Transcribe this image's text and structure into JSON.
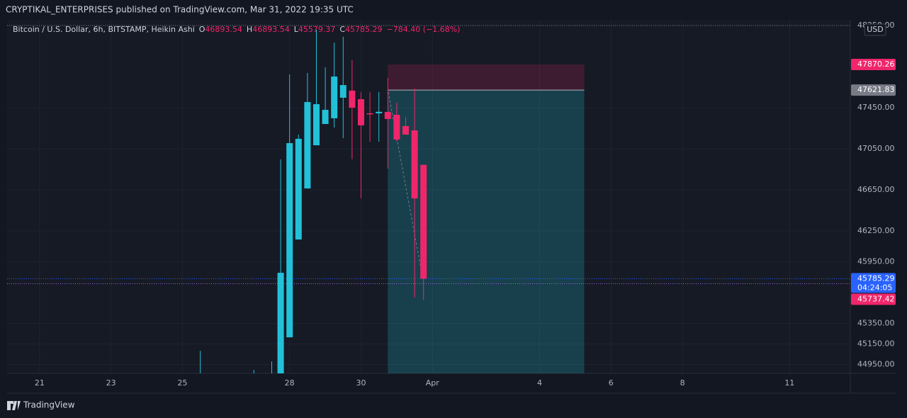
{
  "header": {
    "publisher": "CRYPTIKAL_ENTERPRISES published on TradingView.com, Mar 31, 2022 19:35 UTC",
    "logo": "TradingView"
  },
  "chart_data": {
    "type": "candlestick",
    "symbol": "Bitcoin / U.S. Dollar, 6h, BITSTAMP, Heikin Ashi",
    "ohlc_header": [
      {
        "key": "O",
        "text": "46893.54"
      },
      {
        "key": "H",
        "text": "46893.54"
      },
      {
        "key": "L",
        "text": "45579.37"
      },
      {
        "key": "C",
        "text": "45785.29"
      }
    ],
    "change": "−784.40 (−1.68%)",
    "currency": "USD",
    "up_color": "#22c1d8",
    "down_color": "#f0266b",
    "x": [
      25.5,
      27.0,
      27.5,
      27.75,
      28.0,
      28.25,
      28.5,
      28.75,
      29.0,
      29.25,
      29.5,
      29.75,
      30.0,
      30.25,
      30.5,
      30.75,
      31.0,
      31.25,
      31.5,
      31.75
    ],
    "open": [
      44800,
      44800,
      44800,
      44700,
      45215,
      46167,
      46664,
      47084,
      47291,
      47347,
      47547,
      47616,
      47533,
      47395,
      47395,
      47409,
      47381,
      47271,
      47229,
      46893.54
    ],
    "high": [
      45084,
      44898,
      44981,
      46947,
      47774,
      47188,
      47788,
      48209,
      47843,
      48084,
      48140,
      47912,
      47602,
      47602,
      47602,
      47740,
      47498,
      47360,
      47636,
      46893.54
    ],
    "low": [
      44700,
      44700,
      44700,
      44600,
      45215,
      46167,
      46664,
      47084,
      47291,
      47257,
      47153,
      46947,
      46567,
      47119,
      47119,
      46857,
      47119,
      47188,
      45602,
      45579.37
    ],
    "close": [
      44820,
      44820,
      44820,
      45843,
      47105,
      47147,
      47505,
      47484,
      47429,
      47753,
      47670,
      47450,
      47278,
      47388,
      47410,
      47340,
      47140,
      47188,
      46567,
      45785.29
    ],
    "xlim": [
      20.09,
      43.7
    ],
    "xticks": [
      21,
      23,
      25,
      28,
      30,
      {
        "value": 32,
        "label": "Apr"
      },
      {
        "value": 35,
        "label": "4"
      },
      {
        "value": 37,
        "label": "6"
      },
      {
        "value": 39,
        "label": "8"
      },
      {
        "value": 42,
        "label": "11"
      }
    ],
    "ylim": [
      44864,
      48305
    ],
    "yticks": [
      {
        "value": 48250,
        "label": "48250.00"
      },
      {
        "value": 47450,
        "label": "47450.00"
      },
      {
        "value": 47050,
        "label": "47050.00"
      },
      {
        "value": 46650,
        "label": "46650.00"
      },
      {
        "value": 46250,
        "label": "46250.00"
      },
      {
        "value": 45950,
        "label": "45950.00"
      },
      {
        "value": 45350,
        "label": "45350.00"
      },
      {
        "value": 45150,
        "label": "45150.00"
      },
      {
        "value": 44950,
        "label": "44950.00"
      }
    ],
    "grid": true,
    "position": {
      "start": 30.75,
      "end": 36.25,
      "stop": 47870.26,
      "stop_label": "47870.26",
      "entry": 47621.83,
      "entry_label": "47621.83"
    },
    "last_price": {
      "value": 45785.29,
      "label": "45785.29",
      "countdown": "04:24:05"
    },
    "line_price": {
      "value": 45737.42,
      "label": "45737.42"
    }
  }
}
